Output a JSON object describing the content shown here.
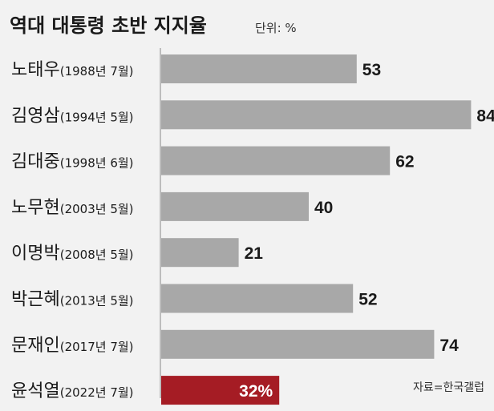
{
  "chart_data": {
    "type": "bar",
    "orientation": "horizontal",
    "title": "역대 대통령 초반 지지율",
    "unit_label": "단위: %",
    "source": "자료=한국갤럽",
    "categories": [
      {
        "name": "노태우",
        "date": "(1988년 7월)"
      },
      {
        "name": "김영삼",
        "date": "(1994년 5월)"
      },
      {
        "name": "김대중",
        "date": "(1998년 6월)"
      },
      {
        "name": "노무현",
        "date": "(2003년 5월)"
      },
      {
        "name": "이명박",
        "date": "(2008년 5월)"
      },
      {
        "name": "박근혜",
        "date": "(2013년 5월)"
      },
      {
        "name": "문재인",
        "date": "(2017년 7월)"
      },
      {
        "name": "윤석열",
        "date": "(2022년 7월)"
      }
    ],
    "values": [
      53,
      84,
      62,
      40,
      21,
      52,
      74,
      32
    ],
    "value_labels": [
      "53",
      "84",
      "62",
      "40",
      "21",
      "52",
      "74",
      "32%"
    ],
    "highlight_index": 7,
    "colors": {
      "bar": "#a8a8a8",
      "highlight": "#a51c24",
      "background": "#f2f2f2"
    },
    "xlim": [
      0,
      100
    ],
    "grid": false
  }
}
